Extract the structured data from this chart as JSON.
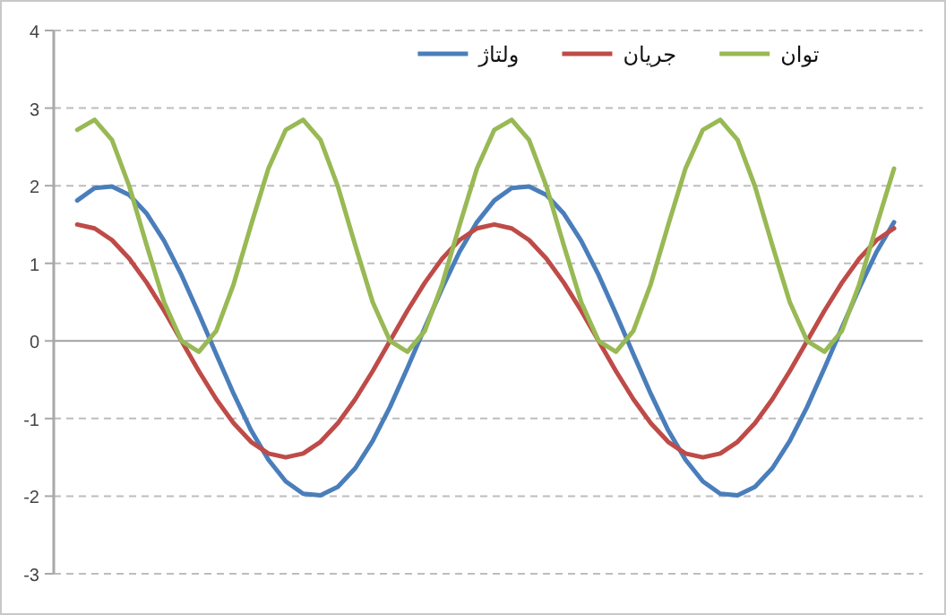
{
  "chart_data": {
    "type": "line",
    "categories": [
      null,
      null,
      null,
      null,
      null,
      null,
      null,
      null,
      null,
      null,
      null,
      null,
      null,
      null,
      null,
      null,
      null,
      null,
      null,
      null,
      null,
      null,
      null,
      null,
      null,
      null,
      null,
      null,
      null,
      null,
      null,
      null,
      null,
      null,
      null,
      null,
      null,
      null,
      null,
      null,
      null,
      null,
      null,
      null,
      null,
      null,
      null,
      null
    ],
    "series": [
      {
        "name": "ولتاژ",
        "color": "#4a7ebb",
        "values": [
          1.81,
          1.97,
          1.99,
          1.88,
          1.64,
          1.29,
          0.85,
          0.35,
          -0.17,
          -0.68,
          -1.15,
          -1.53,
          -1.81,
          -1.97,
          -1.99,
          -1.88,
          -1.64,
          -1.29,
          -0.85,
          -0.35,
          0.17,
          0.68,
          1.15,
          1.53,
          1.81,
          1.97,
          1.99,
          1.88,
          1.64,
          1.29,
          0.85,
          0.35,
          -0.17,
          -0.68,
          -1.15,
          -1.53,
          -1.81,
          -1.97,
          -1.99,
          -1.88,
          -1.64,
          -1.29,
          -0.85,
          -0.35,
          0.17,
          0.68,
          1.15,
          1.53
        ]
      },
      {
        "name": "جریان",
        "color": "#be4b48",
        "values": [
          1.5,
          1.45,
          1.3,
          1.06,
          0.75,
          0.39,
          0,
          -0.39,
          -0.75,
          -1.06,
          -1.3,
          -1.45,
          -1.5,
          -1.45,
          -1.3,
          -1.06,
          -0.75,
          -0.39,
          0,
          0.39,
          0.75,
          1.06,
          1.3,
          1.45,
          1.5,
          1.45,
          1.3,
          1.06,
          0.75,
          0.39,
          0,
          -0.39,
          -0.75,
          -1.06,
          -1.3,
          -1.45,
          -1.5,
          -1.45,
          -1.3,
          -1.06,
          -0.75,
          -0.39,
          0,
          0.39,
          0.75,
          1.06,
          1.3,
          1.45
        ]
      },
      {
        "name": "توان",
        "color": "#98b954",
        "values": [
          2.72,
          2.85,
          2.59,
          1.99,
          1.23,
          0.5,
          0,
          -0.14,
          0.13,
          0.73,
          1.49,
          2.22,
          2.72,
          2.85,
          2.59,
          1.99,
          1.23,
          0.5,
          0,
          -0.14,
          0.13,
          0.73,
          1.49,
          2.22,
          2.72,
          2.85,
          2.59,
          1.99,
          1.23,
          0.5,
          0,
          -0.14,
          0.13,
          0.73,
          1.49,
          2.22,
          2.72,
          2.85,
          2.59,
          1.99,
          1.23,
          0.5,
          0,
          -0.14,
          0.13,
          0.73,
          1.49,
          2.22
        ]
      }
    ],
    "ylim": [
      -3,
      4
    ],
    "yticks": [
      -3,
      -2,
      -1,
      0,
      1,
      2,
      3,
      4
    ],
    "grid": "y",
    "legend": "top",
    "tick_labels": "y"
  }
}
